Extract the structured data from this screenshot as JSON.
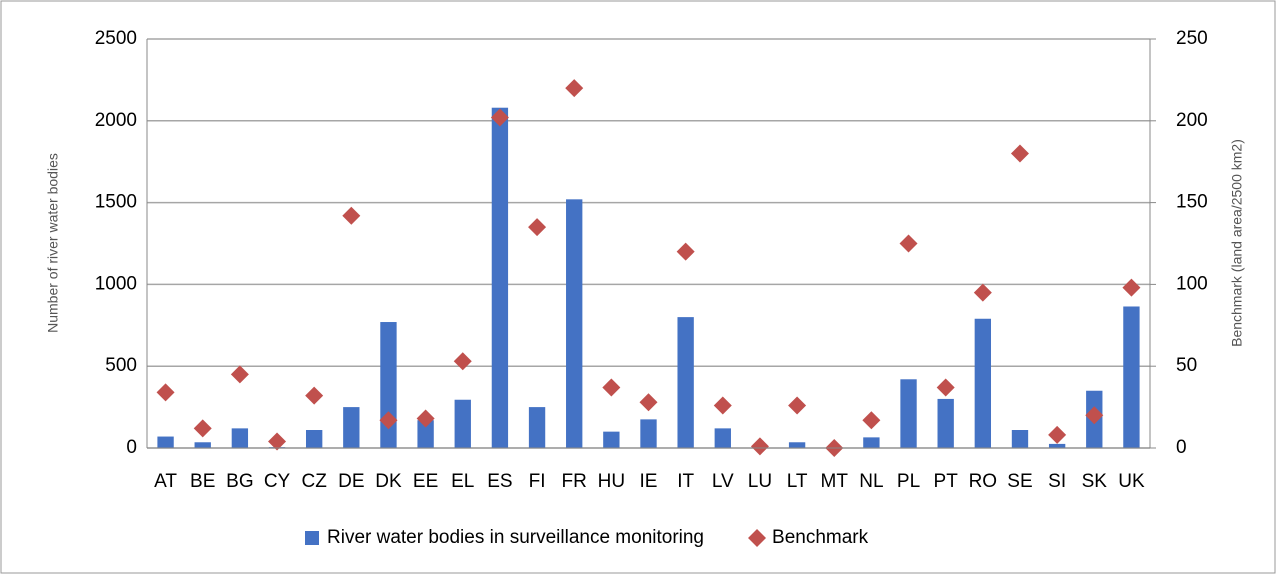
{
  "chart_data": {
    "type": "bar",
    "categories": [
      "AT",
      "BE",
      "BG",
      "CY",
      "CZ",
      "DE",
      "DK",
      "EE",
      "EL",
      "ES",
      "FI",
      "FR",
      "HU",
      "IE",
      "IT",
      "LV",
      "LU",
      "LT",
      "MT",
      "NL",
      "PL",
      "PT",
      "RO",
      "SE",
      "SI",
      "SK",
      "UK"
    ],
    "series": [
      {
        "name": "River water bodies in surveillance monitoring",
        "type": "bar",
        "color": "#4472c4",
        "values": [
          70,
          35,
          120,
          5,
          110,
          250,
          770,
          170,
          295,
          2080,
          250,
          1520,
          100,
          175,
          800,
          120,
          5,
          35,
          5,
          65,
          420,
          300,
          790,
          110,
          25,
          350,
          865
        ]
      },
      {
        "name": "Benchmark",
        "type": "scatter",
        "axis": "y2",
        "color": "#c0504d",
        "values": [
          34,
          12,
          45,
          4,
          32,
          142,
          17,
          18,
          53,
          202,
          135,
          220,
          37,
          28,
          120,
          26,
          1,
          26,
          0,
          17,
          125,
          37,
          95,
          180,
          8,
          20,
          98
        ]
      }
    ],
    "y_label": "Number of river water bodies",
    "y2_label": "Benchmark (land area/2500 km2)",
    "ylim": [
      0,
      2500
    ],
    "yticks": [
      0,
      500,
      1000,
      1500,
      2000,
      2500
    ],
    "y2lim": [
      0,
      250
    ],
    "y2ticks": [
      0,
      50,
      100,
      150,
      200,
      250
    ],
    "grid": true,
    "legend": "bottom"
  }
}
